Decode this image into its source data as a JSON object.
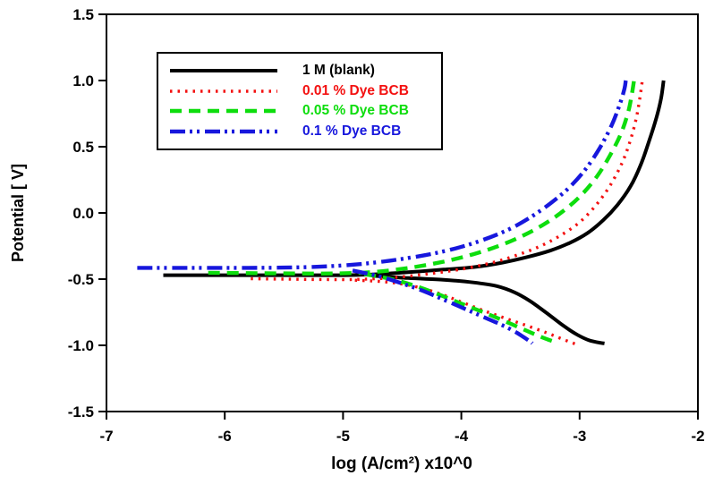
{
  "chart_data": {
    "type": "line",
    "title": "",
    "xlabel": "log (A/cm²) x10^0",
    "ylabel": "Potential [ V]",
    "xlim": [
      -7,
      -2
    ],
    "ylim": [
      -1.5,
      1.5
    ],
    "x_ticks": {
      "values": [
        -7,
        -6,
        -5,
        -4,
        -3,
        -2
      ],
      "labels": [
        "-7",
        "-6",
        "-5",
        "-4",
        "-3",
        "-2"
      ]
    },
    "y_ticks": {
      "values": [
        1.5,
        1.0,
        0.5,
        0.0,
        -0.5,
        -1.0,
        -1.5
      ],
      "labels": [
        "1.5",
        "1.0",
        "0.5",
        "0.0",
        "-0.5",
        "-1.0",
        "-1.5"
      ]
    },
    "grid": false,
    "legend_position": "inside-top-left",
    "series": [
      {
        "name": "1 M (blank)",
        "color": "#000000",
        "style": "solid",
        "anodic": [
          [
            -6.52,
            -0.47
          ],
          [
            -6.2,
            -0.47
          ],
          [
            -5.9,
            -0.47
          ],
          [
            -5.6,
            -0.47
          ],
          [
            -5.3,
            -0.47
          ],
          [
            -5.0,
            -0.47
          ],
          [
            -4.75,
            -0.465
          ],
          [
            -4.45,
            -0.448
          ],
          [
            -4.15,
            -0.428
          ],
          [
            -3.9,
            -0.41
          ],
          [
            -3.65,
            -0.375
          ],
          [
            -3.45,
            -0.335
          ],
          [
            -3.25,
            -0.285
          ],
          [
            -3.08,
            -0.225
          ],
          [
            -2.93,
            -0.15
          ],
          [
            -2.8,
            -0.055
          ],
          [
            -2.68,
            0.06
          ],
          [
            -2.57,
            0.2
          ],
          [
            -2.48,
            0.37
          ],
          [
            -2.41,
            0.55
          ],
          [
            -2.35,
            0.72
          ],
          [
            -2.31,
            0.87
          ],
          [
            -2.29,
            1.0
          ]
        ],
        "cathodic": [
          [
            -4.75,
            -0.475
          ],
          [
            -4.45,
            -0.492
          ],
          [
            -4.15,
            -0.505
          ],
          [
            -3.9,
            -0.525
          ],
          [
            -3.7,
            -0.553
          ],
          [
            -3.55,
            -0.6
          ],
          [
            -3.42,
            -0.665
          ],
          [
            -3.28,
            -0.755
          ],
          [
            -3.14,
            -0.85
          ],
          [
            -3.02,
            -0.92
          ],
          [
            -2.92,
            -0.962
          ],
          [
            -2.82,
            -0.982
          ],
          [
            -2.79,
            -0.985
          ]
        ]
      },
      {
        "name": "0.01 % Dye BCB",
        "color": "#f31111",
        "style": "dotted",
        "anodic": [
          [
            -5.78,
            -0.497
          ],
          [
            -5.5,
            -0.5
          ],
          [
            -5.2,
            -0.503
          ],
          [
            -4.9,
            -0.503
          ],
          [
            -4.6,
            -0.49
          ],
          [
            -4.3,
            -0.462
          ],
          [
            -4.0,
            -0.425
          ],
          [
            -3.75,
            -0.378
          ],
          [
            -3.55,
            -0.325
          ],
          [
            -3.35,
            -0.258
          ],
          [
            -3.17,
            -0.175
          ],
          [
            -3.0,
            -0.07
          ],
          [
            -2.86,
            0.06
          ],
          [
            -2.74,
            0.21
          ],
          [
            -2.64,
            0.38
          ],
          [
            -2.57,
            0.55
          ],
          [
            -2.52,
            0.72
          ],
          [
            -2.49,
            0.87
          ],
          [
            -2.47,
            1.0
          ]
        ],
        "cathodic": [
          [
            -4.9,
            -0.508
          ],
          [
            -4.65,
            -0.52
          ],
          [
            -4.42,
            -0.55
          ],
          [
            -4.2,
            -0.605
          ],
          [
            -4.0,
            -0.672
          ],
          [
            -3.82,
            -0.735
          ],
          [
            -3.63,
            -0.795
          ],
          [
            -3.45,
            -0.85
          ],
          [
            -3.28,
            -0.905
          ],
          [
            -3.14,
            -0.955
          ],
          [
            -3.05,
            -0.985
          ],
          [
            -3.02,
            -0.995
          ]
        ]
      },
      {
        "name": "0.05 % Dye BCB",
        "color": "#0ddd0d",
        "style": "dashed",
        "anodic": [
          [
            -6.14,
            -0.452
          ],
          [
            -5.8,
            -0.455
          ],
          [
            -5.5,
            -0.457
          ],
          [
            -5.2,
            -0.458
          ],
          [
            -4.95,
            -0.455
          ],
          [
            -4.7,
            -0.443
          ],
          [
            -4.42,
            -0.412
          ],
          [
            -4.15,
            -0.368
          ],
          [
            -3.9,
            -0.312
          ],
          [
            -3.68,
            -0.248
          ],
          [
            -3.48,
            -0.172
          ],
          [
            -3.3,
            -0.085
          ],
          [
            -3.13,
            0.02
          ],
          [
            -2.98,
            0.14
          ],
          [
            -2.85,
            0.28
          ],
          [
            -2.74,
            0.44
          ],
          [
            -2.65,
            0.6
          ],
          [
            -2.59,
            0.76
          ],
          [
            -2.56,
            0.89
          ],
          [
            -2.54,
            1.0
          ]
        ],
        "cathodic": [
          [
            -4.82,
            -0.462
          ],
          [
            -4.6,
            -0.498
          ],
          [
            -4.4,
            -0.548
          ],
          [
            -4.2,
            -0.613
          ],
          [
            -4.0,
            -0.685
          ],
          [
            -3.8,
            -0.755
          ],
          [
            -3.62,
            -0.822
          ],
          [
            -3.46,
            -0.885
          ],
          [
            -3.33,
            -0.935
          ],
          [
            -3.24,
            -0.965
          ],
          [
            -3.18,
            -0.98
          ]
        ]
      },
      {
        "name": "0.1 % Dye BCB",
        "color": "#1717dd",
        "style": "dash-dot-dot",
        "anodic": [
          [
            -6.74,
            -0.415
          ],
          [
            -6.4,
            -0.415
          ],
          [
            -6.1,
            -0.415
          ],
          [
            -5.8,
            -0.415
          ],
          [
            -5.5,
            -0.413
          ],
          [
            -5.2,
            -0.406
          ],
          [
            -4.9,
            -0.39
          ],
          [
            -4.6,
            -0.36
          ],
          [
            -4.3,
            -0.318
          ],
          [
            -4.05,
            -0.268
          ],
          [
            -3.82,
            -0.205
          ],
          [
            -3.6,
            -0.125
          ],
          [
            -3.42,
            -0.035
          ],
          [
            -3.25,
            0.07
          ],
          [
            -3.09,
            0.19
          ],
          [
            -2.95,
            0.33
          ],
          [
            -2.83,
            0.49
          ],
          [
            -2.73,
            0.66
          ],
          [
            -2.66,
            0.82
          ],
          [
            -2.62,
            0.94
          ],
          [
            -2.61,
            1.0
          ]
        ],
        "cathodic": [
          [
            -4.92,
            -0.435
          ],
          [
            -4.7,
            -0.478
          ],
          [
            -4.5,
            -0.533
          ],
          [
            -4.32,
            -0.59
          ],
          [
            -4.15,
            -0.655
          ],
          [
            -3.98,
            -0.72
          ],
          [
            -3.82,
            -0.783
          ],
          [
            -3.66,
            -0.845
          ],
          [
            -3.55,
            -0.895
          ],
          [
            -3.47,
            -0.94
          ],
          [
            -3.42,
            -0.97
          ],
          [
            -3.4,
            -0.985
          ]
        ]
      }
    ]
  }
}
